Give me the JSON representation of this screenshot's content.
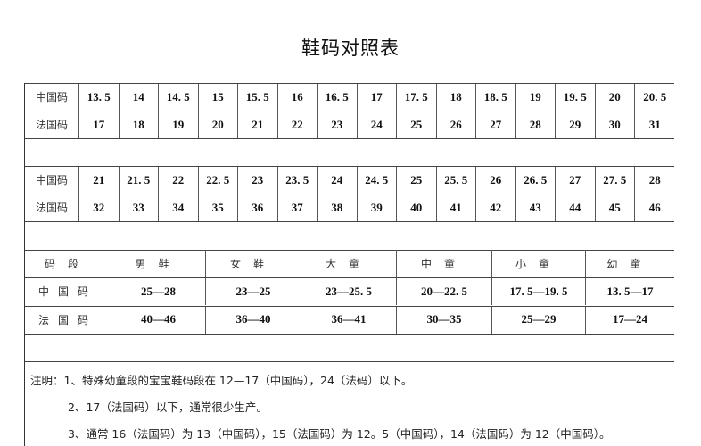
{
  "title": "鞋码对照表",
  "size_rows": [
    {
      "label": "中国码",
      "values": [
        "13. 5",
        "14",
        "14. 5",
        "15",
        "15. 5",
        "16",
        "16. 5",
        "17",
        "17. 5",
        "18",
        "18. 5",
        "19",
        "19. 5",
        "20",
        "20. 5"
      ]
    },
    {
      "label": "法国码",
      "values": [
        "17",
        "18",
        "19",
        "20",
        "21",
        "22",
        "23",
        "24",
        "25",
        "26",
        "27",
        "28",
        "29",
        "30",
        "31"
      ]
    },
    {
      "label": "中国码",
      "values": [
        "21",
        "21. 5",
        "22",
        "22. 5",
        "23",
        "23. 5",
        "24",
        "24. 5",
        "25",
        "25. 5",
        "26",
        "26. 5",
        "27",
        "27. 5",
        "28"
      ]
    },
    {
      "label": "法国码",
      "values": [
        "32",
        "33",
        "34",
        "35",
        "36",
        "37",
        "38",
        "39",
        "40",
        "41",
        "42",
        "43",
        "44",
        "45",
        "46"
      ]
    }
  ],
  "range_table": {
    "headers": [
      "码段",
      "男鞋",
      "女鞋",
      "大童",
      "中童",
      "小童",
      "幼童"
    ],
    "rows": [
      {
        "label": "中国码",
        "values": [
          "25—28",
          "23—25",
          "23—25. 5",
          "20—22. 5",
          "17. 5—19. 5",
          "13. 5—17"
        ]
      },
      {
        "label": "法国码",
        "values": [
          "40—46",
          "36—40",
          "36—41",
          "30—35",
          "25—29",
          "17—24"
        ]
      }
    ]
  },
  "notes": [
    "注明：1、特殊幼童段的宝宝鞋码段在 12—17（中国码），24（法码）以下。",
    "2、17（法国码）以下，通常很少生产。",
    "3、通常 16（法国码）为 13（中国码），15（法国码）为 12。5（中国码），14（法国码）为 12（中国码）。"
  ]
}
